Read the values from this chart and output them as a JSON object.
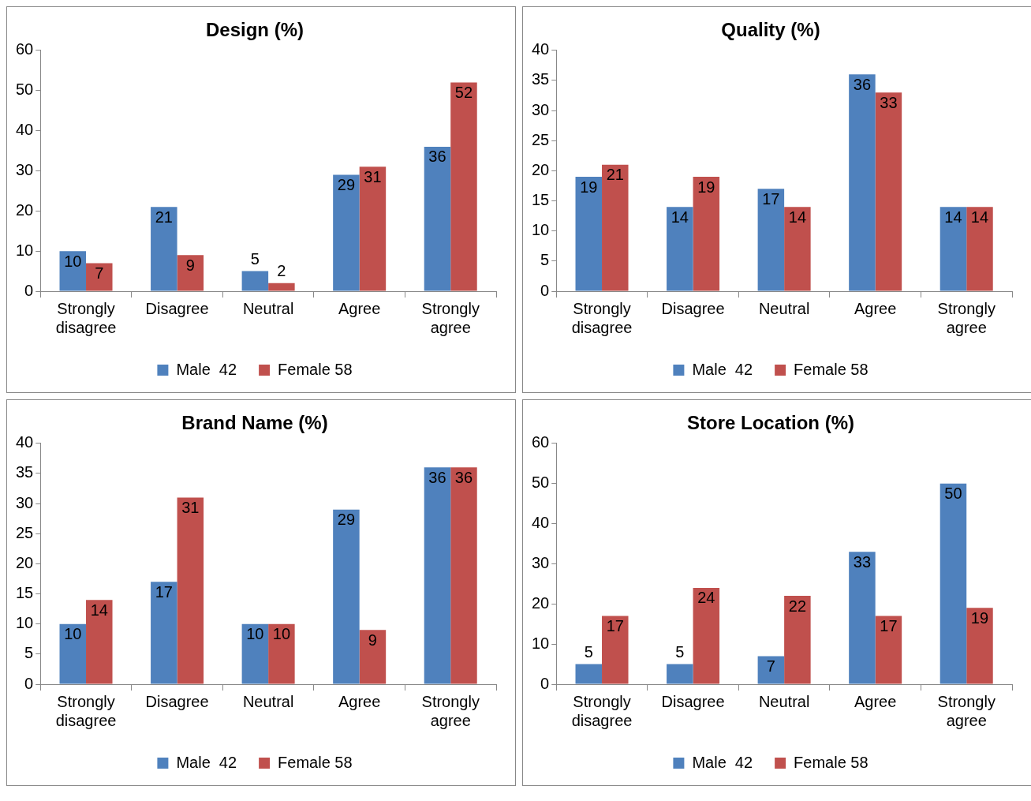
{
  "chart_data": [
    {
      "type": "bar",
      "title": "Design (%)",
      "categories": [
        "Strongly disagree",
        "Disagree",
        "Neutral",
        "Agree",
        "Strongly agree"
      ],
      "series": [
        {
          "name": "Male  42",
          "color": "#4f81bd",
          "values": [
            10,
            21,
            5,
            29,
            36
          ]
        },
        {
          "name": "Female 58",
          "color": "#c0504d",
          "values": [
            7,
            9,
            2,
            31,
            52
          ]
        }
      ],
      "ylim": [
        0,
        60
      ],
      "yticks": [
        0,
        10,
        20,
        30,
        40,
        50,
        60
      ],
      "grid": false,
      "legend": "bottom",
      "data_labels": true
    },
    {
      "type": "bar",
      "title": "Quality (%)",
      "categories": [
        "Strongly disagree",
        "Disagree",
        "Neutral",
        "Agree",
        "Strongly agree"
      ],
      "series": [
        {
          "name": "Male  42",
          "color": "#4f81bd",
          "values": [
            19,
            14,
            17,
            36,
            14
          ]
        },
        {
          "name": "Female 58",
          "color": "#c0504d",
          "values": [
            21,
            19,
            14,
            33,
            14
          ]
        }
      ],
      "ylim": [
        0,
        40
      ],
      "yticks": [
        0,
        5,
        10,
        15,
        20,
        25,
        30,
        35,
        40
      ],
      "grid": false,
      "legend": "bottom",
      "data_labels": true
    },
    {
      "type": "bar",
      "title": "Brand Name (%)",
      "categories": [
        "Strongly disagree",
        "Disagree",
        "Neutral",
        "Agree",
        "Strongly agree"
      ],
      "series": [
        {
          "name": "Male  42",
          "color": "#4f81bd",
          "values": [
            10,
            17,
            10,
            29,
            36
          ]
        },
        {
          "name": "Female 58",
          "color": "#c0504d",
          "values": [
            14,
            31,
            10,
            9,
            36
          ]
        }
      ],
      "ylim": [
        0,
        40
      ],
      "yticks": [
        0,
        5,
        10,
        15,
        20,
        25,
        30,
        35,
        40
      ],
      "grid": false,
      "legend": "bottom",
      "data_labels": true
    },
    {
      "type": "bar",
      "title": "Store Location (%)",
      "categories": [
        "Strongly disagree",
        "Disagree",
        "Neutral",
        "Agree",
        "Strongly agree"
      ],
      "series": [
        {
          "name": "Male  42",
          "color": "#4f81bd",
          "values": [
            5,
            5,
            7,
            33,
            50
          ]
        },
        {
          "name": "Female 58",
          "color": "#c0504d",
          "values": [
            17,
            24,
            22,
            17,
            19
          ]
        }
      ],
      "ylim": [
        0,
        60
      ],
      "yticks": [
        0,
        10,
        20,
        30,
        40,
        50,
        60
      ],
      "grid": false,
      "legend": "bottom",
      "data_labels": true
    }
  ]
}
